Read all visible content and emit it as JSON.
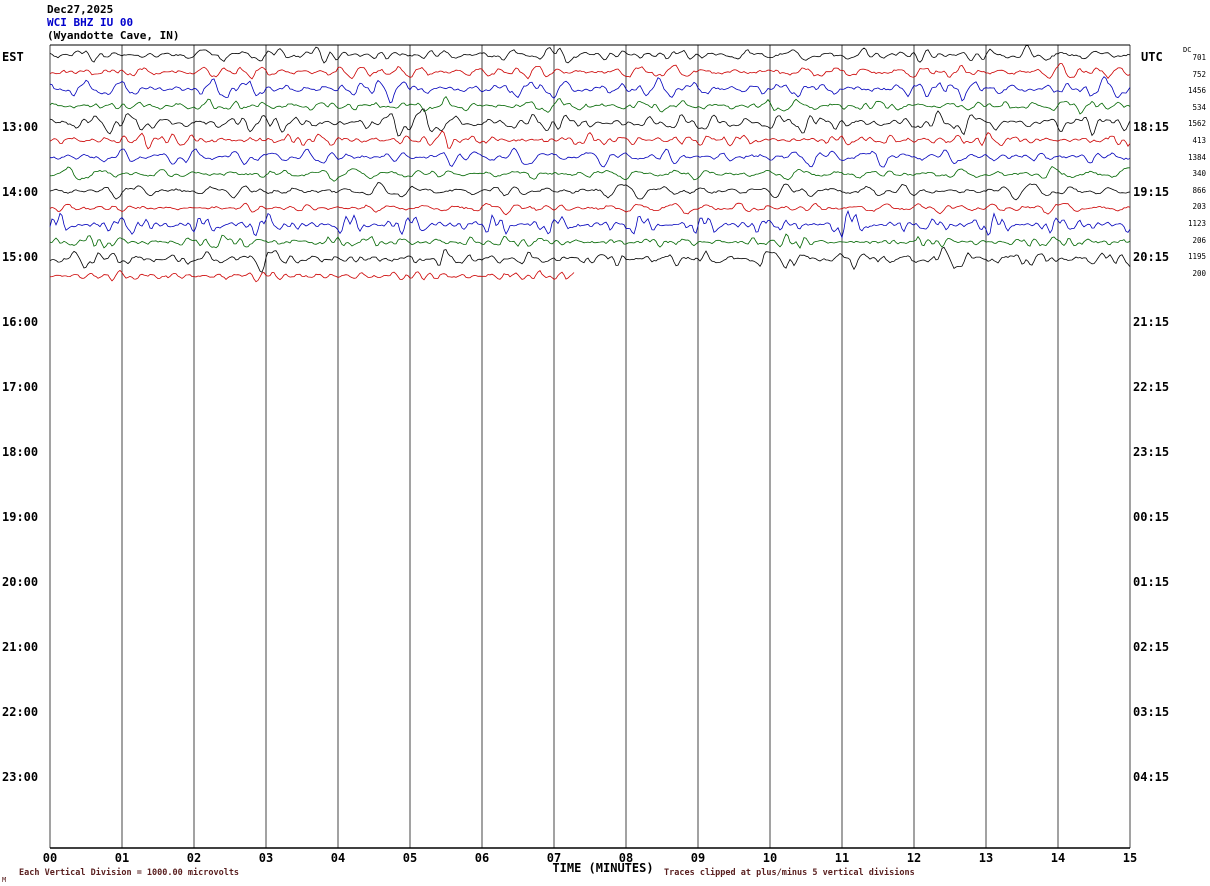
{
  "header": {
    "date": "Dec27,2025",
    "station": "WCI BHZ IU 00",
    "location": "(Wyandotte Cave, IN)"
  },
  "axes": {
    "left_label": "EST",
    "right_label": "UTC",
    "left_ticks": [
      "13:00",
      "14:00",
      "15:00",
      "16:00",
      "17:00",
      "18:00",
      "19:00",
      "20:00",
      "21:00",
      "22:00",
      "23:00"
    ],
    "right_ticks": [
      "18:15",
      "19:15",
      "20:15",
      "21:15",
      "22:15",
      "23:15",
      "00:15",
      "01:15",
      "02:15",
      "03:15",
      "04:15"
    ],
    "x_ticks": [
      "00",
      "01",
      "02",
      "03",
      "04",
      "05",
      "06",
      "07",
      "08",
      "09",
      "10",
      "11",
      "12",
      "13",
      "14",
      "15"
    ],
    "x_axis_label": "TIME (MINUTES)"
  },
  "amplitude_column": {
    "header": "DC",
    "values": [
      701,
      752,
      1456,
      534,
      1562,
      413,
      1384,
      340,
      866,
      203,
      1123,
      206,
      1195,
      200
    ]
  },
  "footer": {
    "left_note": "Each Vertical Division = 1000.00 microvolts",
    "right_note": "Traces clipped at plus/minus 5 vertical divisions",
    "mark": "M"
  },
  "colors": {
    "station": "#0000cc",
    "trace_black": "#000000",
    "trace_red": "#cc0000",
    "trace_blue": "#0000bb",
    "trace_green": "#006600",
    "grid": "#444444",
    "border": "#000000",
    "footnote": "#5a2020"
  },
  "chart_data": {
    "type": "line",
    "subtype": "helicorder-seismogram",
    "title": "WCI BHZ IU 00 (Wyandotte Cave, IN) Dec27,2025",
    "xlabel": "TIME (MINUTES)",
    "x_range_minutes": [
      0,
      15
    ],
    "minutes_per_line": 15,
    "lines_per_hour": 4,
    "left_timezone": "EST",
    "right_timezone": "UTC",
    "vertical_division_microvolts": 1000.0,
    "clip_divisions": 5,
    "traces": [
      {
        "start_est": "12:00",
        "color": "#000000",
        "max_amplitude": 701,
        "coverage": 1
      },
      {
        "start_est": "12:15",
        "color": "#cc0000",
        "max_amplitude": 752,
        "coverage": 1
      },
      {
        "start_est": "12:30",
        "color": "#0000bb",
        "max_amplitude": 1456,
        "coverage": 1
      },
      {
        "start_est": "12:45",
        "color": "#006600",
        "max_amplitude": 534,
        "coverage": 1
      },
      {
        "start_est": "13:00",
        "color": "#000000",
        "max_amplitude": 1562,
        "coverage": 1
      },
      {
        "start_est": "13:15",
        "color": "#cc0000",
        "max_amplitude": 413,
        "coverage": 1
      },
      {
        "start_est": "13:30",
        "color": "#0000bb",
        "max_amplitude": 1384,
        "coverage": 1
      },
      {
        "start_est": "13:45",
        "color": "#006600",
        "max_amplitude": 340,
        "coverage": 1
      },
      {
        "start_est": "14:00",
        "color": "#000000",
        "max_amplitude": 866,
        "coverage": 1
      },
      {
        "start_est": "14:15",
        "color": "#cc0000",
        "max_amplitude": 203,
        "coverage": 1
      },
      {
        "start_est": "14:30",
        "color": "#0000bb",
        "max_amplitude": 1123,
        "coverage": 1
      },
      {
        "start_est": "14:45",
        "color": "#006600",
        "max_amplitude": 206,
        "coverage": 1
      },
      {
        "start_est": "15:00",
        "color": "#000000",
        "max_amplitude": 1195,
        "coverage": 1
      },
      {
        "start_est": "15:15",
        "color": "#cc0000",
        "max_amplitude": 200,
        "coverage": 0.487
      }
    ]
  }
}
